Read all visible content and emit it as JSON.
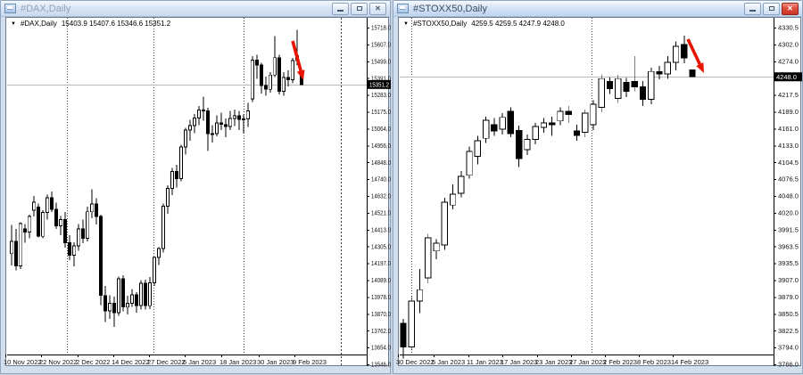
{
  "workspace": {
    "background_color": "#c6d2e2"
  },
  "colors": {
    "bull_fill": "#ffffff",
    "bear_fill": "#000000",
    "candle_outline": "#000000",
    "separator": "#444444",
    "current_price_line": "#b8b8b8",
    "current_price_label_bg": "#000000",
    "current_price_label_text": "#ffffff",
    "arrow": "#e81400"
  },
  "windows": [
    {
      "title": "#DAX,Daily",
      "active": false,
      "buttons": {
        "minimize": "minimize",
        "restore": "restore",
        "close": "close"
      },
      "info_bar": {
        "symbol": "#DAX,Daily",
        "values": "15403.9 15407.6 15346.6 15351.2"
      }
    },
    {
      "title": "#STOXX50,Daily",
      "active": true,
      "buttons": {
        "minimize": "minimize",
        "restore": "restore",
        "close": "close"
      },
      "info_bar": {
        "symbol": "#STOXX50,Daily",
        "values": "4259.5 4259.5 4247.9 4248.0"
      }
    }
  ],
  "chart_data": [
    {
      "type": "candlestick",
      "symbol": "#DAX,Daily",
      "timeframe": "Daily",
      "current_price": 15351.2,
      "current_price_label": "15351.2",
      "ylim": [
        13546.0,
        15718.0
      ],
      "y_ticks": [
        "15718.0",
        "15607.0",
        "15499.0",
        "15391.0",
        "15283.0",
        "15175.0",
        "15064.0",
        "14956.0",
        "14848.0",
        "14740.0",
        "14632.0",
        "14521.0",
        "14413.0",
        "14305.0",
        "14197.0",
        "14089.0",
        "13978.0",
        "13870.0",
        "13762.0",
        "13654.0",
        "13546.0"
      ],
      "x_labels": [
        "10 Nov 2022",
        "22 Nov 2022",
        "2 Dec 2022",
        "14 Dec 2022",
        "27 Dec 2022",
        "6 Jan 2023",
        "18 Jan 2023",
        "30 Jan 2023",
        "9 Feb 2023"
      ],
      "candles": [
        [
          14260,
          14445,
          14185,
          14340
        ],
        [
          14340,
          14420,
          14152,
          14180
        ],
        [
          14180,
          14462,
          14160,
          14454
        ],
        [
          14420,
          14450,
          14330,
          14399
        ],
        [
          14399,
          14512,
          14360,
          14500
        ],
        [
          14540,
          14632,
          14500,
          14592
        ],
        [
          14560,
          14582,
          14365,
          14372
        ],
        [
          14372,
          14540,
          14360,
          14526
        ],
        [
          14526,
          14642,
          14480,
          14620
        ],
        [
          14620,
          14662,
          14530,
          14545
        ],
        [
          14545,
          14590,
          14420,
          14440
        ],
        [
          14440,
          14502,
          14378,
          14480
        ],
        [
          14480,
          14528,
          14298,
          14330
        ],
        [
          14330,
          14380,
          14218,
          14250
        ],
        [
          14250,
          14332,
          14178,
          14310
        ],
        [
          14310,
          14452,
          14280,
          14420
        ],
        [
          14420,
          14480,
          14328,
          14360
        ],
        [
          14360,
          14562,
          14340,
          14530
        ],
        [
          14530,
          14675,
          14488,
          14580
        ],
        [
          14580,
          14618,
          14448,
          14500
        ],
        [
          14500,
          14512,
          13928,
          13990
        ],
        [
          13990,
          14052,
          13818,
          13890
        ],
        [
          13890,
          13992,
          13838,
          13940
        ],
        [
          13940,
          13982,
          13788,
          13880
        ],
        [
          13880,
          14112,
          13858,
          14098
        ],
        [
          14098,
          14122,
          13888,
          13915
        ],
        [
          13915,
          13988,
          13868,
          13940
        ],
        [
          13940,
          14032,
          13918,
          13995
        ],
        [
          13995,
          14012,
          13878,
          13925
        ],
        [
          13925,
          14088,
          13898,
          14070
        ],
        [
          14070,
          14092,
          13898,
          13924
        ],
        [
          13924,
          14108,
          13902,
          14072
        ],
        [
          14072,
          14242,
          14052,
          14235
        ],
        [
          14235,
          14302,
          14188,
          14293
        ],
        [
          14293,
          14582,
          14268,
          14565
        ],
        [
          14565,
          14702,
          14518,
          14680
        ],
        [
          14680,
          14812,
          14638,
          14790
        ],
        [
          14790,
          14832,
          14688,
          14745
        ],
        [
          14745,
          14962,
          14728,
          14947
        ],
        [
          14947,
          15072,
          14898,
          15058
        ],
        [
          15058,
          15122,
          14988,
          15087
        ],
        [
          15087,
          15162,
          15038,
          15134
        ],
        [
          15134,
          15212,
          15088,
          15187
        ],
        [
          15187,
          15272,
          15118,
          15181
        ],
        [
          15181,
          15202,
          14922,
          15033
        ],
        [
          15033,
          15088,
          14978,
          15034
        ],
        [
          15034,
          15152,
          15018,
          15103
        ],
        [
          15103,
          15168,
          15058,
          15093
        ],
        [
          15093,
          15132,
          15012,
          15081
        ],
        [
          15081,
          15182,
          15058,
          15132
        ],
        [
          15132,
          15188,
          15082,
          15150
        ],
        [
          15150,
          15182,
          15058,
          15126
        ],
        [
          15126,
          15158,
          15038,
          15128
        ],
        [
          15128,
          15232,
          15078,
          15180
        ],
        [
          15258,
          15534,
          15238,
          15509
        ],
        [
          15509,
          15542,
          15388,
          15476
        ],
        [
          15476,
          15492,
          15292,
          15345
        ],
        [
          15345,
          15402,
          15278,
          15320
        ],
        [
          15320,
          15432,
          15298,
          15412
        ],
        [
          15412,
          15662,
          15398,
          15524
        ],
        [
          15524,
          15542,
          15288,
          15308
        ],
        [
          15308,
          15432,
          15278,
          15397
        ],
        [
          15397,
          15442,
          15338,
          15381
        ],
        [
          15381,
          15522,
          15358,
          15506
        ],
        [
          15506,
          15705,
          15478,
          15536
        ],
        [
          15403.9,
          15407.6,
          15346.6,
          15351.2
        ]
      ],
      "annotations": [
        {
          "type": "trend-arrow",
          "direction": "down-right",
          "color": "#e81400"
        }
      ]
    },
    {
      "type": "candlestick",
      "symbol": "#STOXX50,Daily",
      "timeframe": "Daily",
      "current_price": 4248.0,
      "current_price_label": "4248.0",
      "ylim": [
        3766.0,
        4330.5
      ],
      "y_ticks": [
        "4330.5",
        "4302.0",
        "4274.0",
        "4245.5",
        "4217.5",
        "4189.0",
        "4161.0",
        "4133.0",
        "4104.5",
        "4076.5",
        "4048.0",
        "4020.0",
        "3991.5",
        "3963.5",
        "3935.5",
        "3907.0",
        "3879.0",
        "3850.5",
        "3822.5",
        "3794.0",
        "3766.0"
      ],
      "x_labels": [
        "30 Dec 2022",
        "5 Jan 2023",
        "11 Jan 2023",
        "17 Jan 2023",
        "23 Jan 2023",
        "27 Jan 2023",
        "2 Feb 2023",
        "8 Feb 2023",
        "14 Feb 2023"
      ],
      "candles": [
        [
          3835,
          3842,
          3776,
          3795
        ],
        [
          3795,
          3880,
          3790,
          3872
        ],
        [
          3872,
          3926,
          3852,
          3891
        ],
        [
          3911,
          3985,
          3902,
          3978
        ],
        [
          3956,
          3976,
          3942,
          3969
        ],
        [
          3966,
          4045,
          3958,
          4038
        ],
        [
          4033,
          4068,
          4026,
          4051
        ],
        [
          4053,
          4090,
          4046,
          4081
        ],
        [
          4083,
          4131,
          4077,
          4123
        ],
        [
          4115,
          4149,
          4101,
          4141
        ],
        [
          4145,
          4181,
          4137,
          4175
        ],
        [
          4168,
          4179,
          4149,
          4157
        ],
        [
          4160,
          4187,
          4151,
          4180
        ],
        [
          4190,
          4197,
          4147,
          4153
        ],
        [
          4158,
          4166,
          4097,
          4111
        ],
        [
          4126,
          4151,
          4117,
          4143
        ],
        [
          4143,
          4171,
          4135,
          4165
        ],
        [
          4163,
          4179,
          4154,
          4171
        ],
        [
          4171,
          4181,
          4149,
          4168
        ],
        [
          4174,
          4197,
          4167,
          4190
        ],
        [
          4190,
          4199,
          4171,
          4185
        ],
        [
          4157,
          4168,
          4141,
          4150
        ],
        [
          4155,
          4193,
          4147,
          4187
        ],
        [
          4168,
          4209,
          4159,
          4202
        ],
        [
          4197,
          4252,
          4189,
          4245
        ],
        [
          4240,
          4247,
          4219,
          4228
        ],
        [
          4212,
          4251,
          4204,
          4245
        ],
        [
          4239,
          4246,
          4214,
          4224
        ],
        [
          4240,
          4283,
          4224,
          4231
        ],
        [
          4231,
          4241,
          4199,
          4210
        ],
        [
          4210,
          4263,
          4202,
          4257
        ],
        [
          4257,
          4266,
          4244,
          4253
        ],
        [
          4253,
          4283,
          4245,
          4272
        ],
        [
          4272,
          4307,
          4259,
          4299
        ],
        [
          4302,
          4317,
          4271,
          4280
        ],
        [
          4259.5,
          4259.5,
          4247.9,
          4248.0
        ]
      ],
      "annotations": [
        {
          "type": "trend-arrow",
          "direction": "down-right",
          "color": "#e81400"
        }
      ]
    }
  ]
}
